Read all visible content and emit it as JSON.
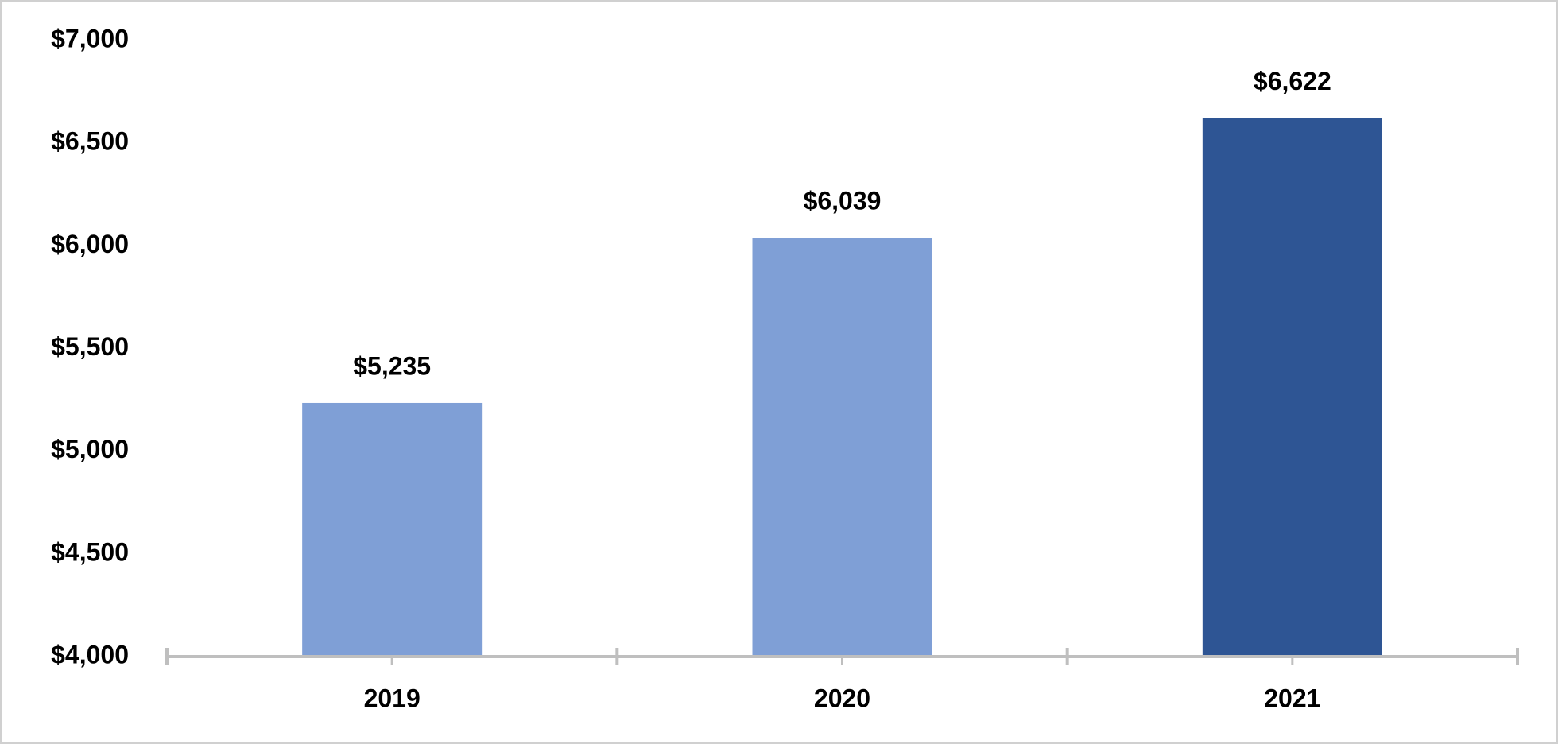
{
  "chart_data": {
    "type": "bar",
    "categories": [
      "2019",
      "2020",
      "2021"
    ],
    "values": [
      5235,
      6039,
      6622
    ],
    "value_labels": [
      "$5,235",
      "$6,039",
      "$6,622"
    ],
    "colors": [
      "#7f9fd6",
      "#7f9fd6",
      "#2e5594"
    ],
    "ylim": [
      4000,
      7000
    ],
    "yticks": [
      {
        "value": 4000,
        "label": "$4,000"
      },
      {
        "value": 4500,
        "label": "$4,500"
      },
      {
        "value": 5000,
        "label": "$5,000"
      },
      {
        "value": 5500,
        "label": "$5,500"
      },
      {
        "value": 6000,
        "label": "$6,000"
      },
      {
        "value": 6500,
        "label": "$6,500"
      },
      {
        "value": 7000,
        "label": "$7,000"
      }
    ],
    "grid": false
  }
}
